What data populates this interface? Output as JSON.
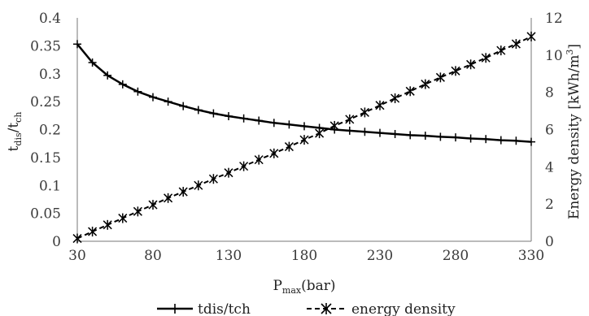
{
  "chart_data": {
    "type": "line",
    "x_axis": {
      "label_main": "P",
      "label_sub": "max",
      "label_unit": "(bar)",
      "range": [
        30,
        330
      ],
      "ticks": [
        30,
        80,
        130,
        180,
        230,
        280,
        330
      ]
    },
    "y_axis_left": {
      "label_main": "t",
      "label_sub1": "dis",
      "label_slash": "/t",
      "label_sub2": "ch",
      "range": [
        0,
        0.4
      ],
      "ticks": [
        "0",
        "0.05",
        "0.1",
        "0.15",
        "0.2",
        "0.25",
        "0.3",
        "0.35",
        "0.4"
      ]
    },
    "y_axis_right": {
      "label_main": "Energy density [kWh/m",
      "label_sup": "3",
      "label_end": "]",
      "range": [
        0,
        12
      ],
      "ticks": [
        "0",
        "2",
        "4",
        "6",
        "8",
        "10",
        "12"
      ]
    },
    "x": [
      30,
      40,
      50,
      60,
      70,
      80,
      90,
      100,
      110,
      120,
      130,
      140,
      150,
      160,
      170,
      180,
      190,
      200,
      210,
      220,
      230,
      240,
      250,
      260,
      270,
      280,
      290,
      300,
      310,
      320,
      330
    ],
    "series": [
      {
        "name": "tdis/tch",
        "axis": "left",
        "marker": "plus",
        "line": "solid",
        "values": [
          0.353,
          0.32,
          0.297,
          0.281,
          0.268,
          0.258,
          0.25,
          0.242,
          0.235,
          0.229,
          0.224,
          0.22,
          0.216,
          0.212,
          0.209,
          0.206,
          0.203,
          0.2,
          0.198,
          0.196,
          0.194,
          0.192,
          0.19,
          0.189,
          0.187,
          0.186,
          0.184,
          0.183,
          0.181,
          0.18,
          0.178
        ]
      },
      {
        "name": "energy density",
        "axis": "right",
        "marker": "asterisk",
        "line": "dashed",
        "values": [
          0.15,
          0.52,
          0.88,
          1.24,
          1.6,
          1.96,
          2.32,
          2.66,
          3.0,
          3.35,
          3.68,
          4.03,
          4.38,
          4.72,
          5.08,
          5.45,
          5.8,
          6.2,
          6.55,
          6.92,
          7.3,
          7.68,
          8.06,
          8.44,
          8.8,
          9.15,
          9.5,
          9.85,
          10.25,
          10.6,
          11.0
        ]
      }
    ],
    "grid": false,
    "legend_position": "bottom-center",
    "colors": {
      "line": "#000000",
      "axis": "#777777",
      "text": "#3a3a3a"
    }
  }
}
